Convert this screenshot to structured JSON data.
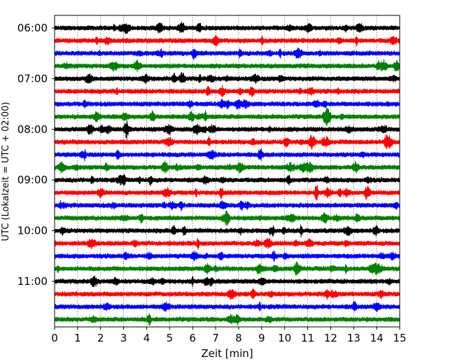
{
  "chart_data": {
    "type": "line",
    "xlabel": "Zeit  [min]",
    "ylabel": "UTC (Lokalzeit = UTC + 02:00)",
    "x_ticks": [
      "0",
      "1",
      "2",
      "3",
      "4",
      "5",
      "6",
      "7",
      "8",
      "9",
      "10",
      "11",
      "12",
      "13",
      "14",
      "15"
    ],
    "xlim": [
      0,
      15
    ],
    "y_ticks": [
      "06:00",
      "07:00",
      "08:00",
      "09:00",
      "10:00",
      "11:00"
    ],
    "grid": "vertical dotted",
    "trace_start": "06:00",
    "trace_interval_minutes": 15,
    "trace_count": 24,
    "colors": [
      "#000000",
      "#ff0000",
      "#0000ff",
      "#008000"
    ]
  }
}
